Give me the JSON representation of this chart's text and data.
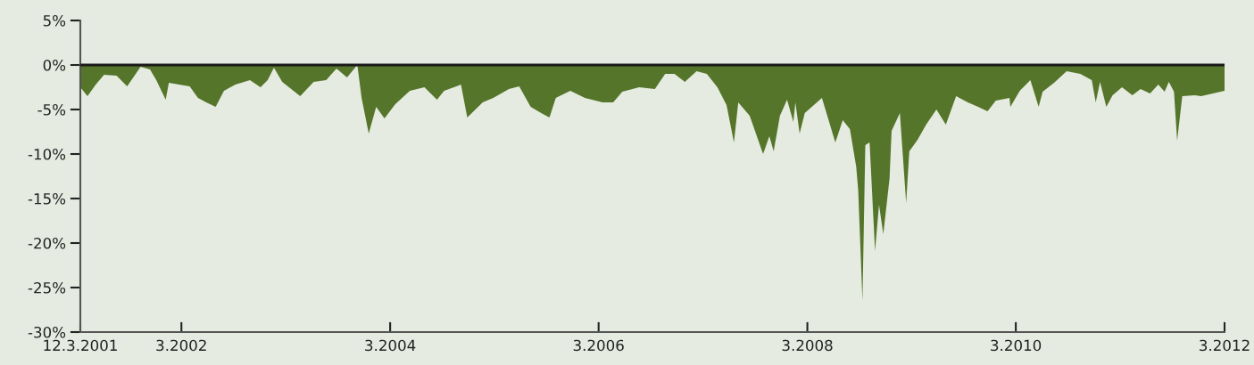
{
  "chart_data": {
    "type": "area",
    "x": [
      "2001-03-12",
      "2001-04-06",
      "2001-05-05",
      "2001-06-03",
      "2001-07-17",
      "2001-08-23",
      "2001-10-09",
      "2001-11-11",
      "2001-12-03",
      "2002-01-05",
      "2002-01-16",
      "2002-03-30",
      "2002-04-28",
      "2002-05-27",
      "2002-06-29",
      "2002-07-28",
      "2002-09-06",
      "2002-10-27",
      "2002-12-03",
      "2002-12-28",
      "2003-01-19",
      "2003-02-17",
      "2003-04-21",
      "2003-06-07",
      "2003-07-21",
      "2003-08-26",
      "2003-10-02",
      "2003-11-07",
      "2003-11-22",
      "2003-12-17",
      "2004-01-12",
      "2004-02-10",
      "2004-03-19",
      "2004-05-09",
      "2004-06-29",
      "2004-08-12",
      "2004-09-06",
      "2004-11-04",
      "2004-11-26",
      "2005-01-19",
      "2005-02-25",
      "2005-04-21",
      "2005-05-27",
      "2005-07-06",
      "2005-08-12",
      "2005-09-10",
      "2005-10-02",
      "2005-11-22",
      "2006-01-12",
      "2006-03-15",
      "2006-04-21",
      "2006-05-23",
      "2006-07-21",
      "2006-09-14",
      "2006-10-20",
      "2006-11-22",
      "2006-12-28",
      "2007-02-07",
      "2007-03-15",
      "2007-04-21",
      "2007-05-23",
      "2007-06-18",
      "2007-07-03",
      "2007-08-12",
      "2007-09-28",
      "2007-10-20",
      "2007-11-04",
      "2007-11-26",
      "2007-12-21",
      "2008-01-12",
      "2008-01-19",
      "2008-02-03",
      "2008-02-21",
      "2008-04-21",
      "2008-06-07",
      "2008-07-03",
      "2008-07-28",
      "2008-08-19",
      "2008-08-26",
      "2008-09-10",
      "2008-09-20",
      "2008-10-05",
      "2008-10-24",
      "2008-11-07",
      "2008-11-22",
      "2008-12-14",
      "2008-12-21",
      "2009-01-19",
      "2009-02-10",
      "2009-02-21",
      "2009-03-22",
      "2009-04-21",
      "2009-05-27",
      "2009-06-29",
      "2009-08-04",
      "2009-09-14",
      "2009-10-20",
      "2009-11-22",
      "2009-12-21",
      "2010-02-07",
      "2010-02-10",
      "2010-03-15",
      "2010-04-21",
      "2010-05-20",
      "2010-06-03",
      "2010-07-13",
      "2010-08-26",
      "2010-10-13",
      "2010-11-22",
      "2010-12-06",
      "2010-12-21",
      "2011-01-12",
      "2011-02-03",
      "2011-03-08",
      "2011-04-13",
      "2011-05-12",
      "2011-06-14",
      "2011-07-13",
      "2011-08-04",
      "2011-08-19",
      "2011-09-06",
      "2011-09-17",
      "2011-10-05",
      "2011-11-18",
      "2011-12-10",
      "2012-03-01"
    ],
    "values": [
      -2.5,
      -3.5,
      -2.2,
      -1.1,
      -1.2,
      -2.4,
      -0.2,
      -0.5,
      -1.7,
      -3.9,
      -2.0,
      -2.4,
      -3.7,
      -4.2,
      -4.7,
      -2.9,
      -2.2,
      -1.7,
      -2.5,
      -1.7,
      -0.3,
      -1.9,
      -3.5,
      -1.9,
      -1.7,
      -0.4,
      -1.4,
      0.0,
      -3.7,
      -7.7,
      -4.7,
      -6.0,
      -4.4,
      -2.9,
      -2.5,
      -3.9,
      -2.9,
      -2.2,
      -5.9,
      -4.2,
      -3.7,
      -2.7,
      -2.4,
      -4.7,
      -5.4,
      -5.9,
      -3.7,
      -2.9,
      -3.7,
      -4.2,
      -4.2,
      -3.0,
      -2.5,
      -2.7,
      -1.0,
      -1.0,
      -1.9,
      -0.7,
      -1.0,
      -2.5,
      -4.5,
      -8.7,
      -4.2,
      -5.7,
      -10.0,
      -8.0,
      -9.7,
      -5.7,
      -3.9,
      -6.4,
      -4.2,
      -7.7,
      -5.4,
      -3.7,
      -8.7,
      -6.2,
      -7.2,
      -11.4,
      -14.0,
      -26.5,
      -9.0,
      -8.7,
      -20.9,
      -15.7,
      -19.0,
      -12.7,
      -7.4,
      -5.4,
      -15.5,
      -9.7,
      -8.4,
      -6.7,
      -5.0,
      -6.7,
      -3.5,
      -4.2,
      -4.7,
      -5.2,
      -4.0,
      -3.7,
      -4.7,
      -2.9,
      -1.7,
      -4.7,
      -3.0,
      -2.0,
      -0.7,
      -1.0,
      -1.7,
      -4.2,
      -1.9,
      -4.7,
      -3.4,
      -2.5,
      -3.4,
      -2.7,
      -3.2,
      -2.2,
      -3.0,
      -1.9,
      -3.0,
      -8.5,
      -3.5,
      -3.4,
      -3.5,
      -2.9
    ],
    "color": "#55752a",
    "xlim": [
      "2001-03-12",
      "2012-03-01"
    ],
    "xticks": [
      {
        "value": "2001-03-12",
        "label": "12.3.2001"
      },
      {
        "value": "2002-03",
        "label": "3.2002"
      },
      {
        "value": "2004-03",
        "label": "3.2004"
      },
      {
        "value": "2006-03",
        "label": "3.2006"
      },
      {
        "value": "2008-03",
        "label": "3.2008"
      },
      {
        "value": "2010-03",
        "label": "3.2010"
      },
      {
        "value": "2012-03",
        "label": "3.2012"
      }
    ],
    "ylim": [
      -30,
      5
    ],
    "yticks": [
      {
        "value": 5,
        "label": "5%"
      },
      {
        "value": 0,
        "label": "0%"
      },
      {
        "value": -5,
        "label": "-5%"
      },
      {
        "value": -10,
        "label": "-10%"
      },
      {
        "value": -15,
        "label": "-15%"
      },
      {
        "value": -20,
        "label": "-20%"
      },
      {
        "value": -25,
        "label": "-25%"
      },
      {
        "value": -30,
        "label": "-30%"
      }
    ],
    "ref_lines": [
      {
        "axis": "y",
        "value": 0,
        "color": "#1a1a1a"
      }
    ],
    "grid": false
  }
}
